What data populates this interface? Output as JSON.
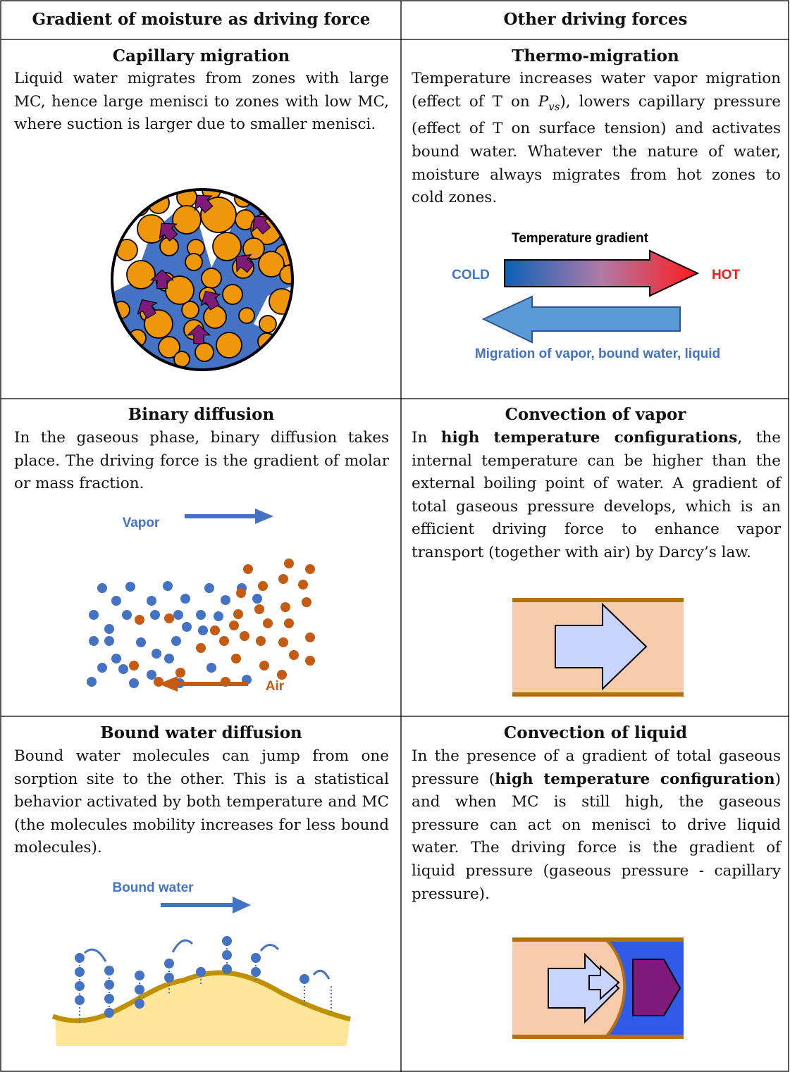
{
  "header": [
    "Gradient of moisture as driving force",
    "Other driving forces"
  ],
  "rows": [
    [
      {
        "title": "Capillary migration",
        "text": [
          "Liquid water migrates from zones with large MC, hence large menisci to zones with low MC, where suction is larger due to smaller menisci."
        ]
      },
      {
        "title": "Thermo-migration",
        "text": [
          "Temperature increases water vapor migration (effect of T on ",
          {
            "italic": "P",
            "sub": "vs"
          },
          "), lowers capillary pressure (effect of T on surface tension) and activates bound water.  Whatever the nature of water, moisture always migrates from hot zones to cold zones."
        ],
        "labels": {
          "gradient": "Temperature gradient",
          "cold": "COLD",
          "hot": "HOT",
          "migration": "Migration of vapor, bound water, liquid"
        }
      }
    ],
    [
      {
        "title": "Binary diffusion",
        "text": [
          "In the gaseous phase, binary diffusion takes place. The driving force is the gradient of molar or mass fraction."
        ],
        "labels": {
          "vapor": "Vapor",
          "air": "Air"
        }
      },
      {
        "title": "Convection of vapor",
        "text": [
          "In ",
          {
            "bold": "high temperature configurations"
          },
          ", the internal temperature can be higher than the external boiling point of water.  A gradient of total gaseous pressure develops, which is an efficient driving force to enhance vapor transport (together with air) by Darcy’s law."
        ]
      }
    ],
    [
      {
        "title": "Bound water diffusion",
        "text": [
          "Bound water molecules can jump from one sorption site to the other.  This is a statistical behavior activated by both temperature and MC (the molecules mobility increases for less bound molecules)."
        ],
        "labels": {
          "bound": "Bound water"
        }
      },
      {
        "title": "Convection of liquid",
        "text": [
          "In the presence of a gradient of total gaseous pressure (",
          {
            "bold": "high temperature configuration"
          },
          ") and when MC is still high, the gaseous pressure can act on menisci to drive liquid water.  The driving force is the gradient of liquid pressure (gaseous pressure - capillary pressure)."
        ]
      }
    ]
  ]
}
